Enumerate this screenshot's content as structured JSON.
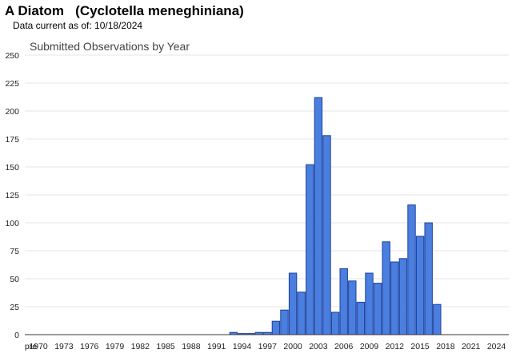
{
  "header": {
    "title": "A Diatom   (Cyclotella meneghiniana)",
    "subtitle": "Data current as of: 10/18/2024"
  },
  "colors": {
    "bar_fill": "#4a7fe0",
    "bar_stroke": "#1c3f99"
  },
  "chart_data": {
    "type": "bar",
    "title": "Submitted Observations by Year",
    "xlabel": "",
    "ylabel": "",
    "ylim": [
      0,
      250
    ],
    "yticks": [
      0,
      25,
      50,
      75,
      100,
      125,
      150,
      175,
      200,
      225,
      250
    ],
    "grid": true,
    "legend": "none",
    "x_tick_labels": [
      "pre",
      "1970",
      "1973",
      "1976",
      "1979",
      "1982",
      "1985",
      "1988",
      "1991",
      "1994",
      "1997",
      "2000",
      "2003",
      "2006",
      "2009",
      "2012",
      "2015",
      "2018",
      "2021",
      "2024"
    ],
    "categories": [
      "pre",
      "1970",
      "1971",
      "1972",
      "1973",
      "1974",
      "1975",
      "1976",
      "1977",
      "1978",
      "1979",
      "1980",
      "1981",
      "1982",
      "1983",
      "1984",
      "1985",
      "1986",
      "1987",
      "1988",
      "1989",
      "1990",
      "1991",
      "1992",
      "1993",
      "1994",
      "1995",
      "1996",
      "1997",
      "1998",
      "1999",
      "2000",
      "2001",
      "2002",
      "2003",
      "2004",
      "2005",
      "2006",
      "2007",
      "2008",
      "2009",
      "2010",
      "2011",
      "2012",
      "2013",
      "2014",
      "2015",
      "2016",
      "2017",
      "2018",
      "2019",
      "2020",
      "2021",
      "2022",
      "2023",
      "2024"
    ],
    "values": [
      0,
      0,
      0,
      0,
      0,
      0,
      0,
      0,
      0,
      0,
      0,
      0,
      0,
      0,
      0,
      0,
      0,
      0,
      0,
      0,
      0,
      0,
      0,
      0,
      2,
      1,
      1,
      2,
      2,
      12,
      22,
      55,
      38,
      152,
      212,
      178,
      20,
      59,
      48,
      29,
      55,
      46,
      83,
      65,
      68,
      116,
      88,
      100,
      27,
      0,
      0,
      0,
      0,
      0,
      0,
      0
    ]
  }
}
